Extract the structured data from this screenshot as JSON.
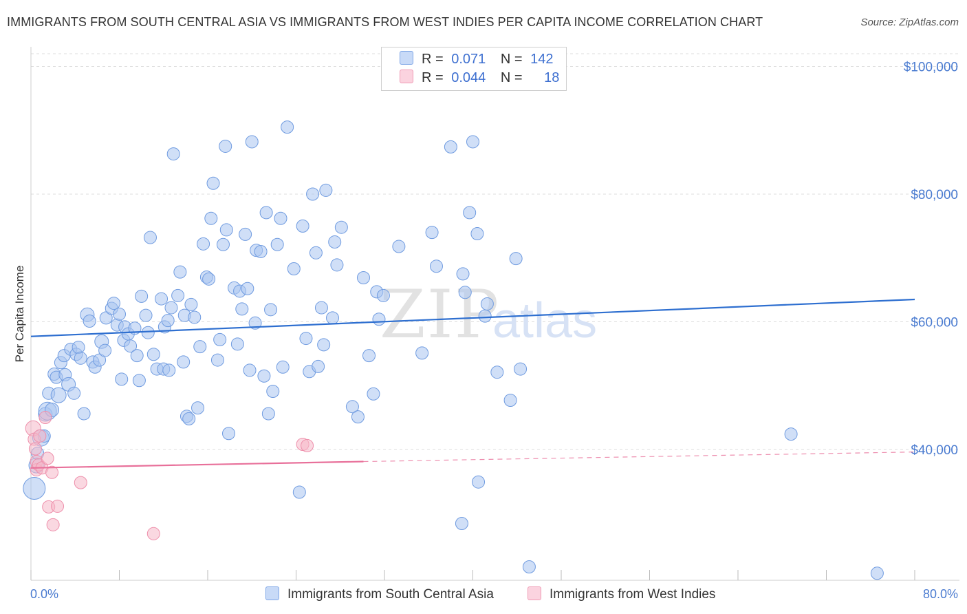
{
  "title": "IMMIGRANTS FROM SOUTH CENTRAL ASIA VS IMMIGRANTS FROM WEST INDIES PER CAPITA INCOME CORRELATION CHART",
  "source": "Source: ZipAtlas.com",
  "watermark": {
    "zip": "ZIP",
    "atlas": "atlas"
  },
  "legend": {
    "rows": [
      {
        "r_label": "R =",
        "r_value": "0.071",
        "n_label": "N =",
        "n_value": "142",
        "color": "#a9c4f0"
      },
      {
        "r_label": "R =",
        "r_value": "0.044",
        "n_label": "N =",
        "n_value": "18",
        "color": "#f6b8c9"
      }
    ]
  },
  "bottom_legend": [
    {
      "label": "Immigrants from South Central Asia",
      "color": "#a9c4f0"
    },
    {
      "label": "Immigrants from West Indies",
      "color": "#f6b8c9"
    }
  ],
  "chart_data": {
    "type": "scatter",
    "title": "IMMIGRANTS FROM SOUTH CENTRAL ASIA VS IMMIGRANTS FROM WEST INDIES PER CAPITA INCOME CORRELATION CHART",
    "xlabel": "",
    "ylabel": "Per Capita Income",
    "xlim": [
      0,
      80
    ],
    "ylim": [
      19500,
      102000
    ],
    "x_tick_labels": [
      "0.0%",
      "80.0%"
    ],
    "y_ticks": [
      40000,
      60000,
      80000,
      100000
    ],
    "y_tick_labels": [
      "$40,000",
      "$60,000",
      "$80,000",
      "$100,000"
    ],
    "grid": true,
    "legend_position": "top-center",
    "series": [
      {
        "name": "Immigrants from South Central Asia",
        "color": "#a9c4f0",
        "stroke": "#6f9be0",
        "trend": {
          "x": [
            0,
            80
          ],
          "y": [
            57700,
            63500
          ],
          "color": "#2e6fd0"
        },
        "points": [
          [
            0.3,
            33900,
            16
          ],
          [
            0.5,
            37500,
            11
          ],
          [
            0.6,
            39400,
            9
          ],
          [
            0.9,
            41800,
            12
          ],
          [
            1.2,
            42100,
            9
          ],
          [
            1.3,
            45500,
            10
          ],
          [
            1.5,
            46000,
            13
          ],
          [
            1.6,
            48800,
            9
          ],
          [
            1.9,
            46200,
            10
          ],
          [
            2.1,
            51800,
            9
          ],
          [
            2.3,
            51300,
            9
          ],
          [
            2.5,
            48500,
            11
          ],
          [
            2.7,
            53600,
            9
          ],
          [
            3.0,
            54700,
            9
          ],
          [
            3.1,
            51700,
            9
          ],
          [
            3.4,
            50200,
            10
          ],
          [
            3.6,
            55700,
            9
          ],
          [
            3.9,
            48800,
            9
          ],
          [
            4.1,
            54900,
            9
          ],
          [
            4.3,
            56000,
            9
          ],
          [
            4.5,
            54300,
            9
          ],
          [
            4.8,
            45600,
            9
          ],
          [
            5.1,
            61100,
            10
          ],
          [
            5.3,
            60100,
            9
          ],
          [
            5.6,
            53700,
            9
          ],
          [
            5.8,
            52900,
            9
          ],
          [
            6.2,
            54000,
            9
          ],
          [
            6.4,
            56900,
            10
          ],
          [
            6.7,
            55500,
            9
          ],
          [
            6.8,
            60600,
            9
          ],
          [
            7.3,
            62100,
            9
          ],
          [
            7.5,
            62900,
            9
          ],
          [
            7.8,
            59500,
            9
          ],
          [
            8.0,
            61200,
            9
          ],
          [
            8.2,
            51000,
            9
          ],
          [
            8.4,
            57100,
            9
          ],
          [
            8.5,
            59200,
            9
          ],
          [
            8.8,
            58100,
            9
          ],
          [
            9.0,
            56200,
            9
          ],
          [
            9.4,
            59000,
            9
          ],
          [
            9.6,
            54700,
            9
          ],
          [
            9.8,
            50800,
            9
          ],
          [
            10.0,
            64000,
            9
          ],
          [
            10.4,
            61000,
            9
          ],
          [
            10.6,
            58300,
            9
          ],
          [
            10.8,
            73200,
            9
          ],
          [
            11.1,
            54900,
            9
          ],
          [
            11.4,
            52600,
            9
          ],
          [
            11.8,
            63600,
            9
          ],
          [
            12.0,
            52600,
            9
          ],
          [
            12.1,
            59200,
            9
          ],
          [
            12.4,
            60200,
            9
          ],
          [
            12.5,
            52400,
            9
          ],
          [
            12.7,
            62200,
            9
          ],
          [
            12.9,
            86300,
            9
          ],
          [
            13.3,
            64100,
            9
          ],
          [
            13.5,
            67800,
            9
          ],
          [
            13.8,
            53700,
            9
          ],
          [
            13.9,
            61000,
            9
          ],
          [
            14.1,
            45200,
            9
          ],
          [
            14.3,
            44800,
            9
          ],
          [
            14.5,
            62700,
            9
          ],
          [
            14.8,
            60700,
            9
          ],
          [
            15.1,
            46500,
            9
          ],
          [
            15.3,
            56100,
            9
          ],
          [
            15.6,
            72200,
            9
          ],
          [
            15.9,
            67000,
            9
          ],
          [
            16.1,
            66700,
            9
          ],
          [
            16.3,
            76200,
            9
          ],
          [
            16.5,
            81700,
            9
          ],
          [
            16.9,
            54000,
            9
          ],
          [
            17.1,
            57200,
            9
          ],
          [
            17.4,
            72100,
            9
          ],
          [
            17.6,
            87500,
            9
          ],
          [
            17.7,
            74400,
            9
          ],
          [
            17.9,
            42500,
            9
          ],
          [
            18.4,
            65300,
            9
          ],
          [
            18.7,
            56500,
            9
          ],
          [
            18.9,
            64800,
            9
          ],
          [
            19.1,
            62000,
            9
          ],
          [
            19.4,
            73700,
            9
          ],
          [
            19.6,
            65200,
            9
          ],
          [
            19.8,
            52400,
            9
          ],
          [
            20.0,
            88200,
            9
          ],
          [
            20.3,
            59800,
            9
          ],
          [
            20.4,
            71200,
            9
          ],
          [
            20.8,
            71000,
            9
          ],
          [
            21.1,
            51500,
            9
          ],
          [
            21.3,
            77100,
            9
          ],
          [
            21.5,
            45600,
            9
          ],
          [
            21.7,
            61900,
            9
          ],
          [
            21.9,
            49100,
            9
          ],
          [
            22.3,
            72100,
            9
          ],
          [
            22.6,
            76200,
            9
          ],
          [
            22.8,
            52900,
            9
          ],
          [
            23.2,
            90500,
            9
          ],
          [
            23.8,
            68300,
            9
          ],
          [
            24.3,
            33300,
            9
          ],
          [
            24.6,
            75000,
            9
          ],
          [
            24.9,
            57400,
            9
          ],
          [
            25.2,
            52200,
            9
          ],
          [
            25.5,
            80000,
            9
          ],
          [
            25.8,
            70800,
            9
          ],
          [
            26.0,
            53000,
            9
          ],
          [
            26.3,
            62200,
            9
          ],
          [
            26.5,
            56400,
            9
          ],
          [
            26.7,
            80600,
            9
          ],
          [
            27.3,
            60600,
            9
          ],
          [
            27.5,
            72500,
            9
          ],
          [
            27.7,
            68900,
            9
          ],
          [
            28.1,
            74800,
            9
          ],
          [
            29.1,
            46700,
            9
          ],
          [
            29.6,
            45100,
            9
          ],
          [
            30.1,
            66900,
            9
          ],
          [
            30.6,
            54700,
            9
          ],
          [
            31.0,
            48700,
            9
          ],
          [
            31.3,
            64700,
            9
          ],
          [
            31.5,
            60400,
            9
          ],
          [
            31.9,
            64100,
            9
          ],
          [
            33.3,
            71800,
            9
          ],
          [
            35.4,
            55100,
            9
          ],
          [
            36.3,
            74000,
            9
          ],
          [
            36.7,
            68700,
            9
          ],
          [
            38.0,
            87400,
            9
          ],
          [
            39.0,
            28400,
            9
          ],
          [
            39.1,
            67500,
            9
          ],
          [
            39.3,
            64600,
            9
          ],
          [
            39.7,
            77100,
            9
          ],
          [
            40.0,
            88200,
            9
          ],
          [
            40.4,
            73800,
            9
          ],
          [
            40.5,
            34900,
            9
          ],
          [
            41.1,
            60900,
            9
          ],
          [
            41.3,
            62800,
            9
          ],
          [
            42.2,
            52100,
            9
          ],
          [
            43.4,
            47700,
            9
          ],
          [
            43.9,
            69900,
            9
          ],
          [
            44.3,
            52600,
            9
          ],
          [
            45.1,
            21600,
            9
          ],
          [
            68.8,
            42400,
            9
          ],
          [
            76.6,
            20600,
            9
          ]
        ]
      },
      {
        "name": "Immigrants from West Indies",
        "color": "#f6b8c9",
        "stroke": "#ee8fab",
        "trend": {
          "x": [
            0,
            30.1
          ],
          "y": [
            37100,
            38100
          ],
          "dashed_to": [
            80,
            39600
          ],
          "color": "#e8709a"
        },
        "points": [
          [
            0.2,
            43300,
            11
          ],
          [
            0.3,
            41600,
            9
          ],
          [
            0.4,
            40100,
            9
          ],
          [
            0.5,
            38100,
            9
          ],
          [
            0.5,
            36800,
            9
          ],
          [
            0.7,
            37600,
            9
          ],
          [
            0.8,
            42100,
            9
          ],
          [
            1.0,
            37100,
            9
          ],
          [
            1.3,
            45000,
            9
          ],
          [
            1.5,
            38600,
            9
          ],
          [
            1.6,
            31000,
            9
          ],
          [
            1.9,
            36400,
            9
          ],
          [
            2.0,
            28200,
            9
          ],
          [
            2.4,
            31100,
            9
          ],
          [
            4.5,
            34800,
            9
          ],
          [
            11.1,
            26800,
            9
          ],
          [
            24.6,
            40800,
            9
          ],
          [
            25.0,
            40600,
            9
          ]
        ]
      }
    ]
  }
}
